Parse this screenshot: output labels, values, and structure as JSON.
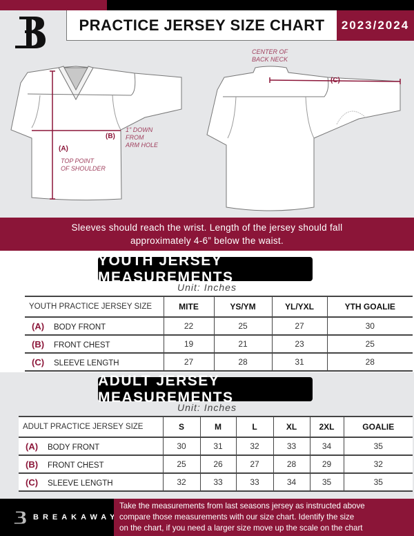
{
  "header": {
    "title": "PRACTICE JERSEY SIZE CHART",
    "season": "2023/2024",
    "logo_letter": "B"
  },
  "diagram": {
    "front_labels": {
      "a": "(A)",
      "a_note_1": "TOP POINT",
      "a_note_2": "OF SHOULDER",
      "b": "(B)",
      "b_note_1": "1\" DOWN",
      "b_note_2": "FROM",
      "b_note_3": "ARM HOLE"
    },
    "back_labels": {
      "c": "(C)",
      "c_note_1": "CENTER OF",
      "c_note_2": "BACK NECK"
    }
  },
  "banner": {
    "line1": "Sleeves should reach the wrist. Length of the jersey should fall",
    "line2": "approximately 4-6” below the waist."
  },
  "youth": {
    "heading": "YOUTH JERSEY MEASUREMENTS",
    "unit": "Unit: Inches",
    "headers": [
      "YOUTH PRACTICE JERSEY SIZE",
      "MITE",
      "YS/YM",
      "YL/YXL",
      "YTH GOALIE"
    ],
    "rows": [
      {
        "code": "(A)",
        "name": "BODY FRONT",
        "values": [
          "22",
          "25",
          "27",
          "30"
        ]
      },
      {
        "code": "(B)",
        "name": "FRONT CHEST",
        "values": [
          "19",
          "21",
          "23",
          "25"
        ]
      },
      {
        "code": "(C)",
        "name": "SLEEVE LENGTH",
        "values": [
          "27",
          "28",
          "31",
          "28"
        ]
      }
    ]
  },
  "adult": {
    "heading": "ADULT JERSEY MEASUREMENTS",
    "unit": "Unit: Inches",
    "headers": [
      "ADULT PRACTICE JERSEY SIZE",
      "S",
      "M",
      "L",
      "XL",
      "2XL",
      "GOALIE"
    ],
    "rows": [
      {
        "code": "(A)",
        "name": "BODY FRONT",
        "values": [
          "30",
          "31",
          "32",
          "33",
          "34",
          "35"
        ]
      },
      {
        "code": "(B)",
        "name": "FRONT CHEST",
        "values": [
          "25",
          "26",
          "27",
          "28",
          "29",
          "32"
        ]
      },
      {
        "code": "(C)",
        "name": "SLEEVE LENGTH",
        "values": [
          "32",
          "33",
          "33",
          "34",
          "35",
          "35"
        ]
      }
    ]
  },
  "footer": {
    "brand": "BREAKAWAY",
    "text_1": "Take the measurements from last seasons jersey as instructed above",
    "text_2": "compare those measurements  with our size chart. Identify the size",
    "text_3": "on the chart, if you need a larger size move up the scale on the chart"
  },
  "colors": {
    "accent": "#8b1538",
    "dark": "#000000",
    "background": "#e6e7e9"
  }
}
